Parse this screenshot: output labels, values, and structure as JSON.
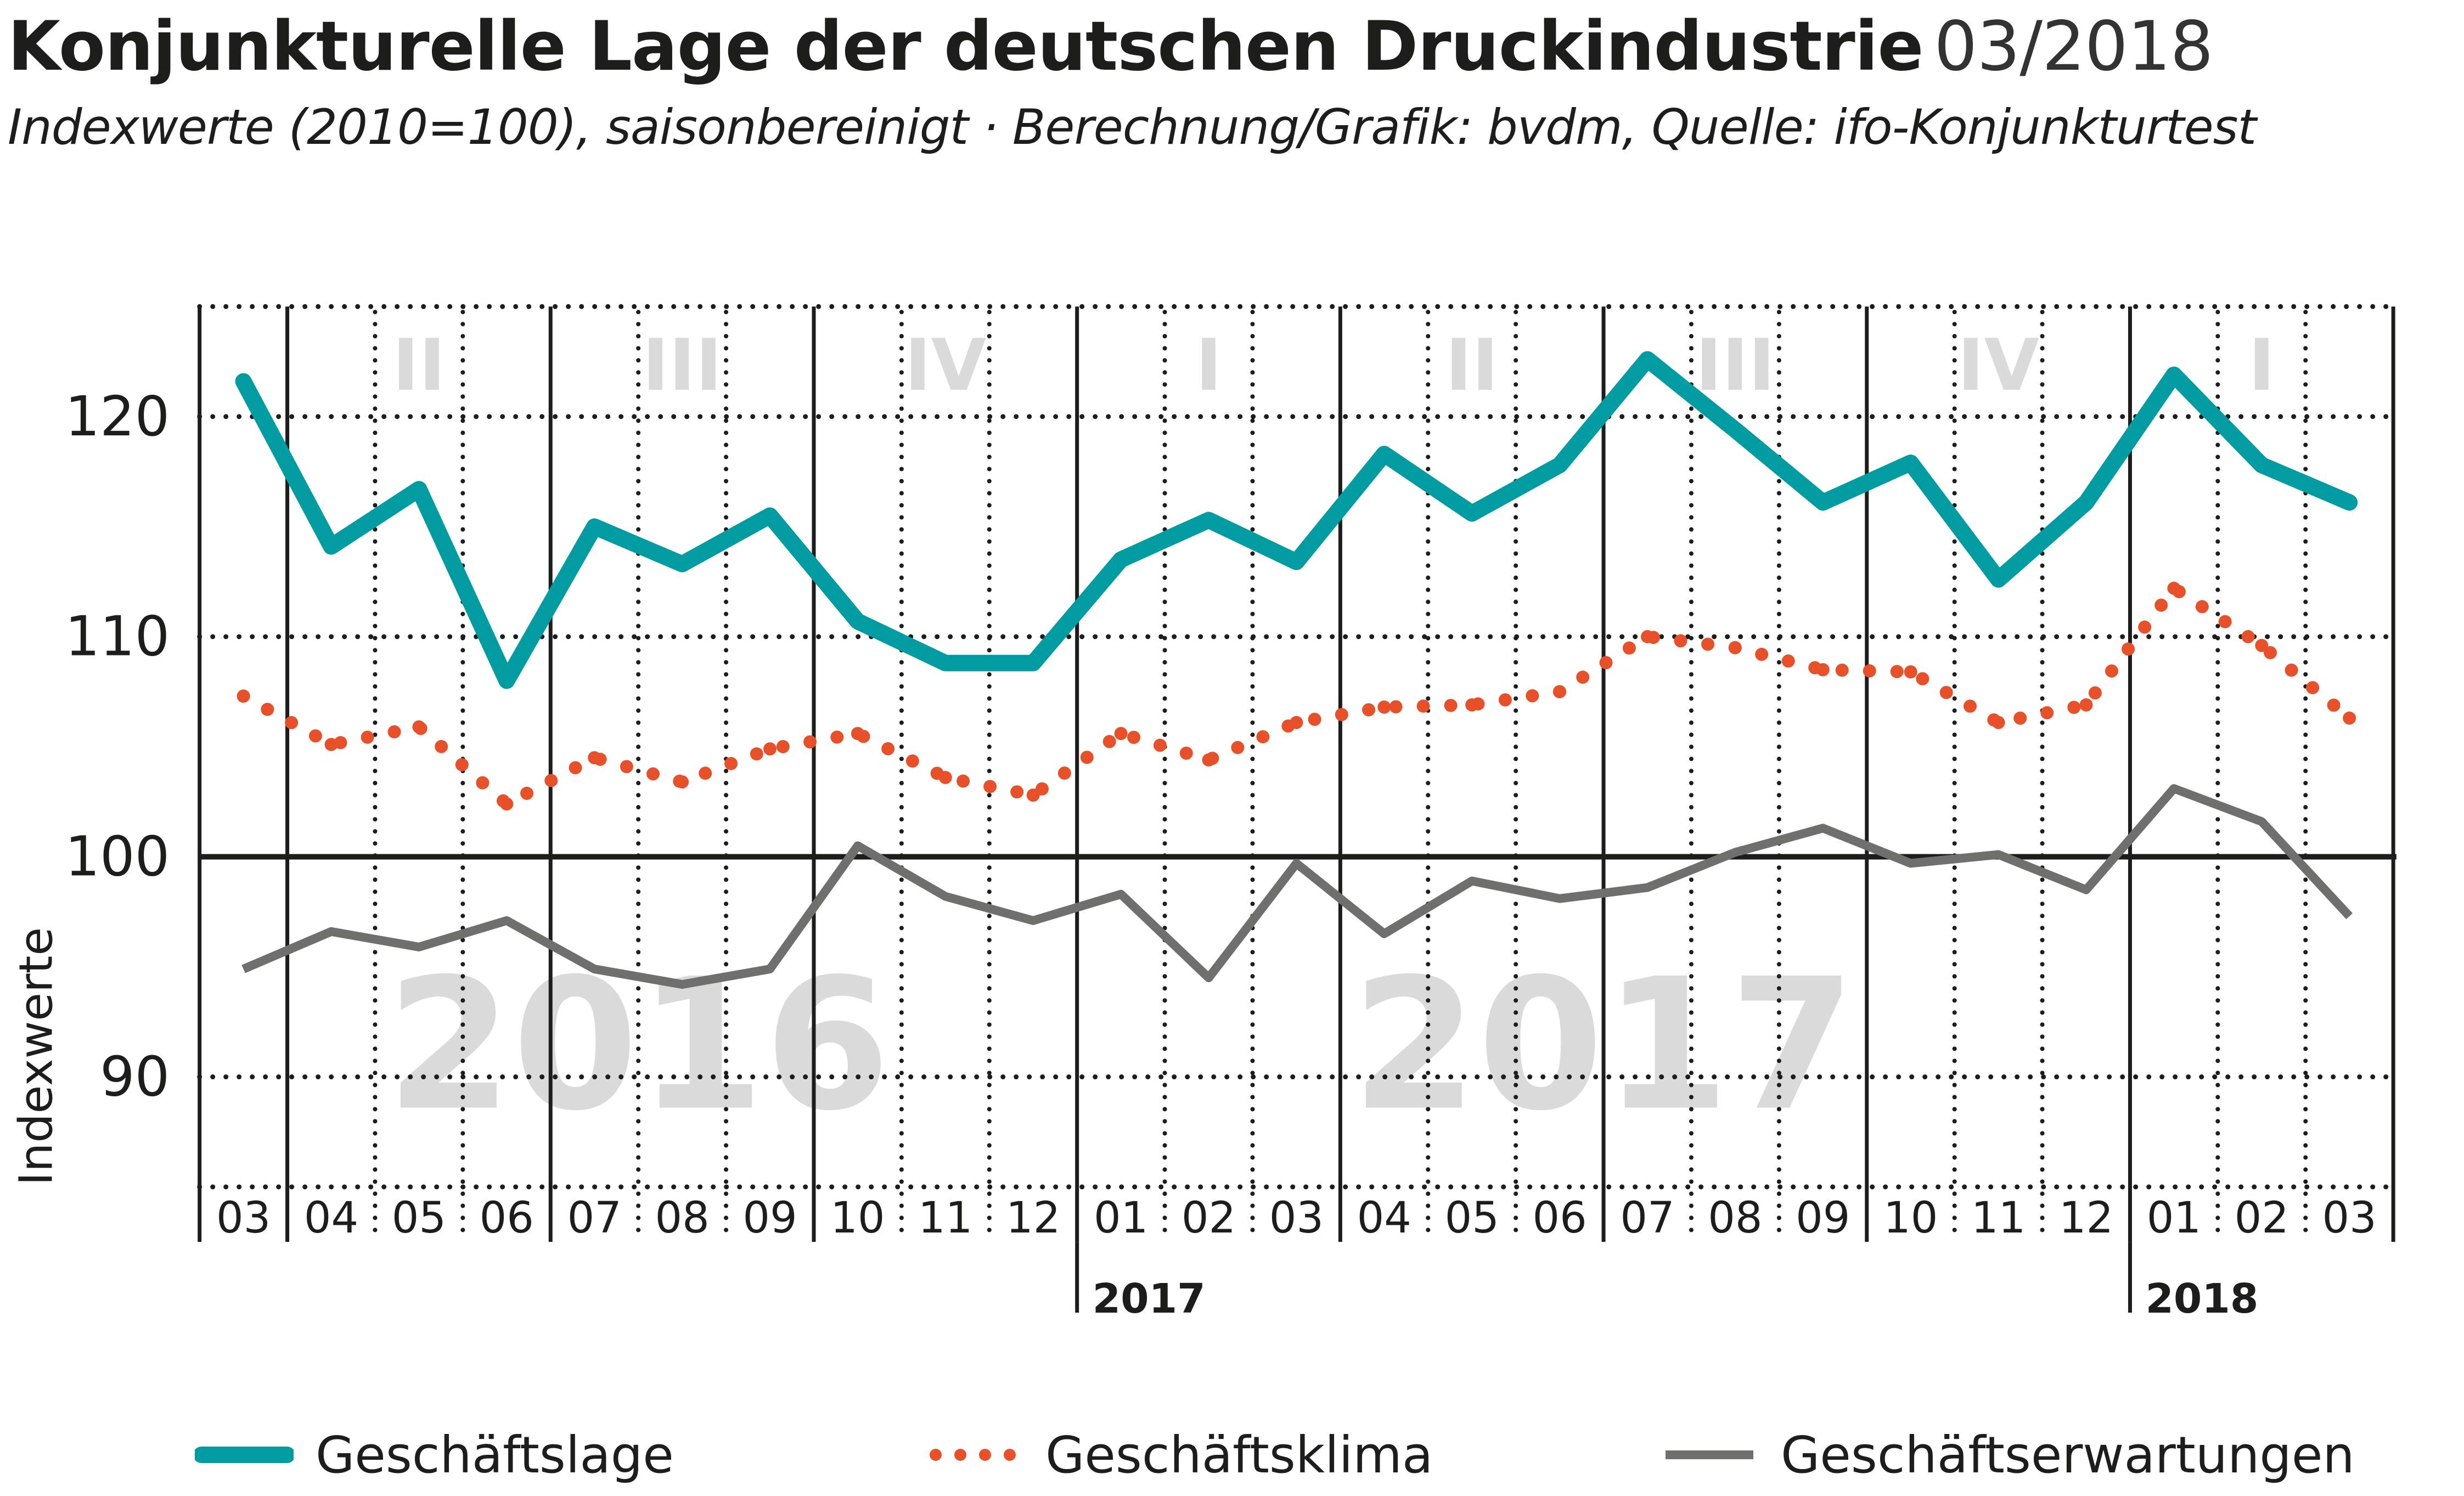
{
  "header": {
    "title": "Konjunkturelle Lage der deutschen Druckindustrie",
    "date": "03/2018",
    "subtitle": "Indexwerte (2010=100), saisonbereinigt · Berechnung/Grafik: bvdm, Quelle: ifo-Konjunkturtest"
  },
  "chart_data": {
    "type": "line",
    "title": "Konjunkturelle Lage der deutschen Druckindustrie 03/2018",
    "subtitle": "Indexwerte (2010=100), saisonbereinigt · Berechnung/Grafik: bvdm, Quelle: ifo-Konjunkturtest",
    "xlabel": "",
    "ylabel": "Indexwerte",
    "ylim": [
      85,
      125
    ],
    "yticks": [
      90,
      100,
      110,
      120
    ],
    "grid": true,
    "reference_line": 100,
    "legend_position": "bottom",
    "categories": [
      "03",
      "04",
      "05",
      "06",
      "07",
      "08",
      "09",
      "10",
      "11",
      "12",
      "01",
      "02",
      "03",
      "04",
      "05",
      "06",
      "07",
      "08",
      "09",
      "10",
      "11",
      "12",
      "01",
      "02",
      "03"
    ],
    "year_labels": [
      {
        "label": "2017",
        "at_index": 10
      },
      {
        "label": "2018",
        "at_index": 22
      }
    ],
    "background_years": [
      {
        "label": "2016",
        "from_index": 0,
        "to_index": 9
      },
      {
        "label": "2017",
        "from_index": 10,
        "to_index": 21
      }
    ],
    "quarters": [
      {
        "label": "II",
        "from_index": 1,
        "to_index": 3
      },
      {
        "label": "III",
        "from_index": 4,
        "to_index": 6
      },
      {
        "label": "IV",
        "from_index": 7,
        "to_index": 9
      },
      {
        "label": "I",
        "from_index": 10,
        "to_index": 12
      },
      {
        "label": "II",
        "from_index": 13,
        "to_index": 15
      },
      {
        "label": "III",
        "from_index": 16,
        "to_index": 18
      },
      {
        "label": "IV",
        "from_index": 19,
        "to_index": 21
      },
      {
        "label": "I",
        "from_index": 22,
        "to_index": 24
      }
    ],
    "series": [
      {
        "name": "Geschäftslage",
        "color": "#009ca2",
        "style": "solid-thick",
        "values": [
          121.6,
          114.1,
          116.7,
          108.0,
          115.0,
          113.3,
          115.5,
          110.7,
          108.8,
          108.8,
          113.5,
          115.3,
          113.4,
          118.3,
          115.6,
          117.8,
          122.6,
          119.4,
          116.1,
          117.9,
          112.6,
          116.1,
          121.9,
          117.8,
          116.1
        ]
      },
      {
        "name": "Geschäftsklima",
        "color": "#e8502a",
        "style": "dotted",
        "values": [
          107.3,
          105.1,
          105.9,
          102.4,
          104.5,
          103.4,
          104.9,
          105.6,
          103.6,
          102.8,
          105.6,
          104.4,
          106.1,
          106.8,
          106.9,
          107.5,
          110.0,
          109.5,
          108.5,
          108.4,
          106.1,
          106.9,
          112.2,
          109.6,
          106.3
        ]
      },
      {
        "name": "Geschäftserwartungen",
        "color": "#6f6f6e",
        "style": "solid-thin",
        "values": [
          94.9,
          96.6,
          95.9,
          97.1,
          94.9,
          94.2,
          94.9,
          100.5,
          98.2,
          97.1,
          98.3,
          94.5,
          99.7,
          96.5,
          98.9,
          98.1,
          98.6,
          100.2,
          101.3,
          99.7,
          100.1,
          98.5,
          103.1,
          101.6,
          97.3
        ]
      }
    ]
  },
  "legend": [
    {
      "label": "Geschäftslage",
      "icon": "thick-teal-line"
    },
    {
      "label": "Geschäftsklima",
      "icon": "orange-dotted-line"
    },
    {
      "label": "Geschäftserwartungen",
      "icon": "gray-line"
    }
  ],
  "colors": {
    "teal": "#009ca2",
    "orange": "#e8502a",
    "gray": "#6f6f6e",
    "grid": "#1d1d1b",
    "watermark": "#dadada"
  }
}
